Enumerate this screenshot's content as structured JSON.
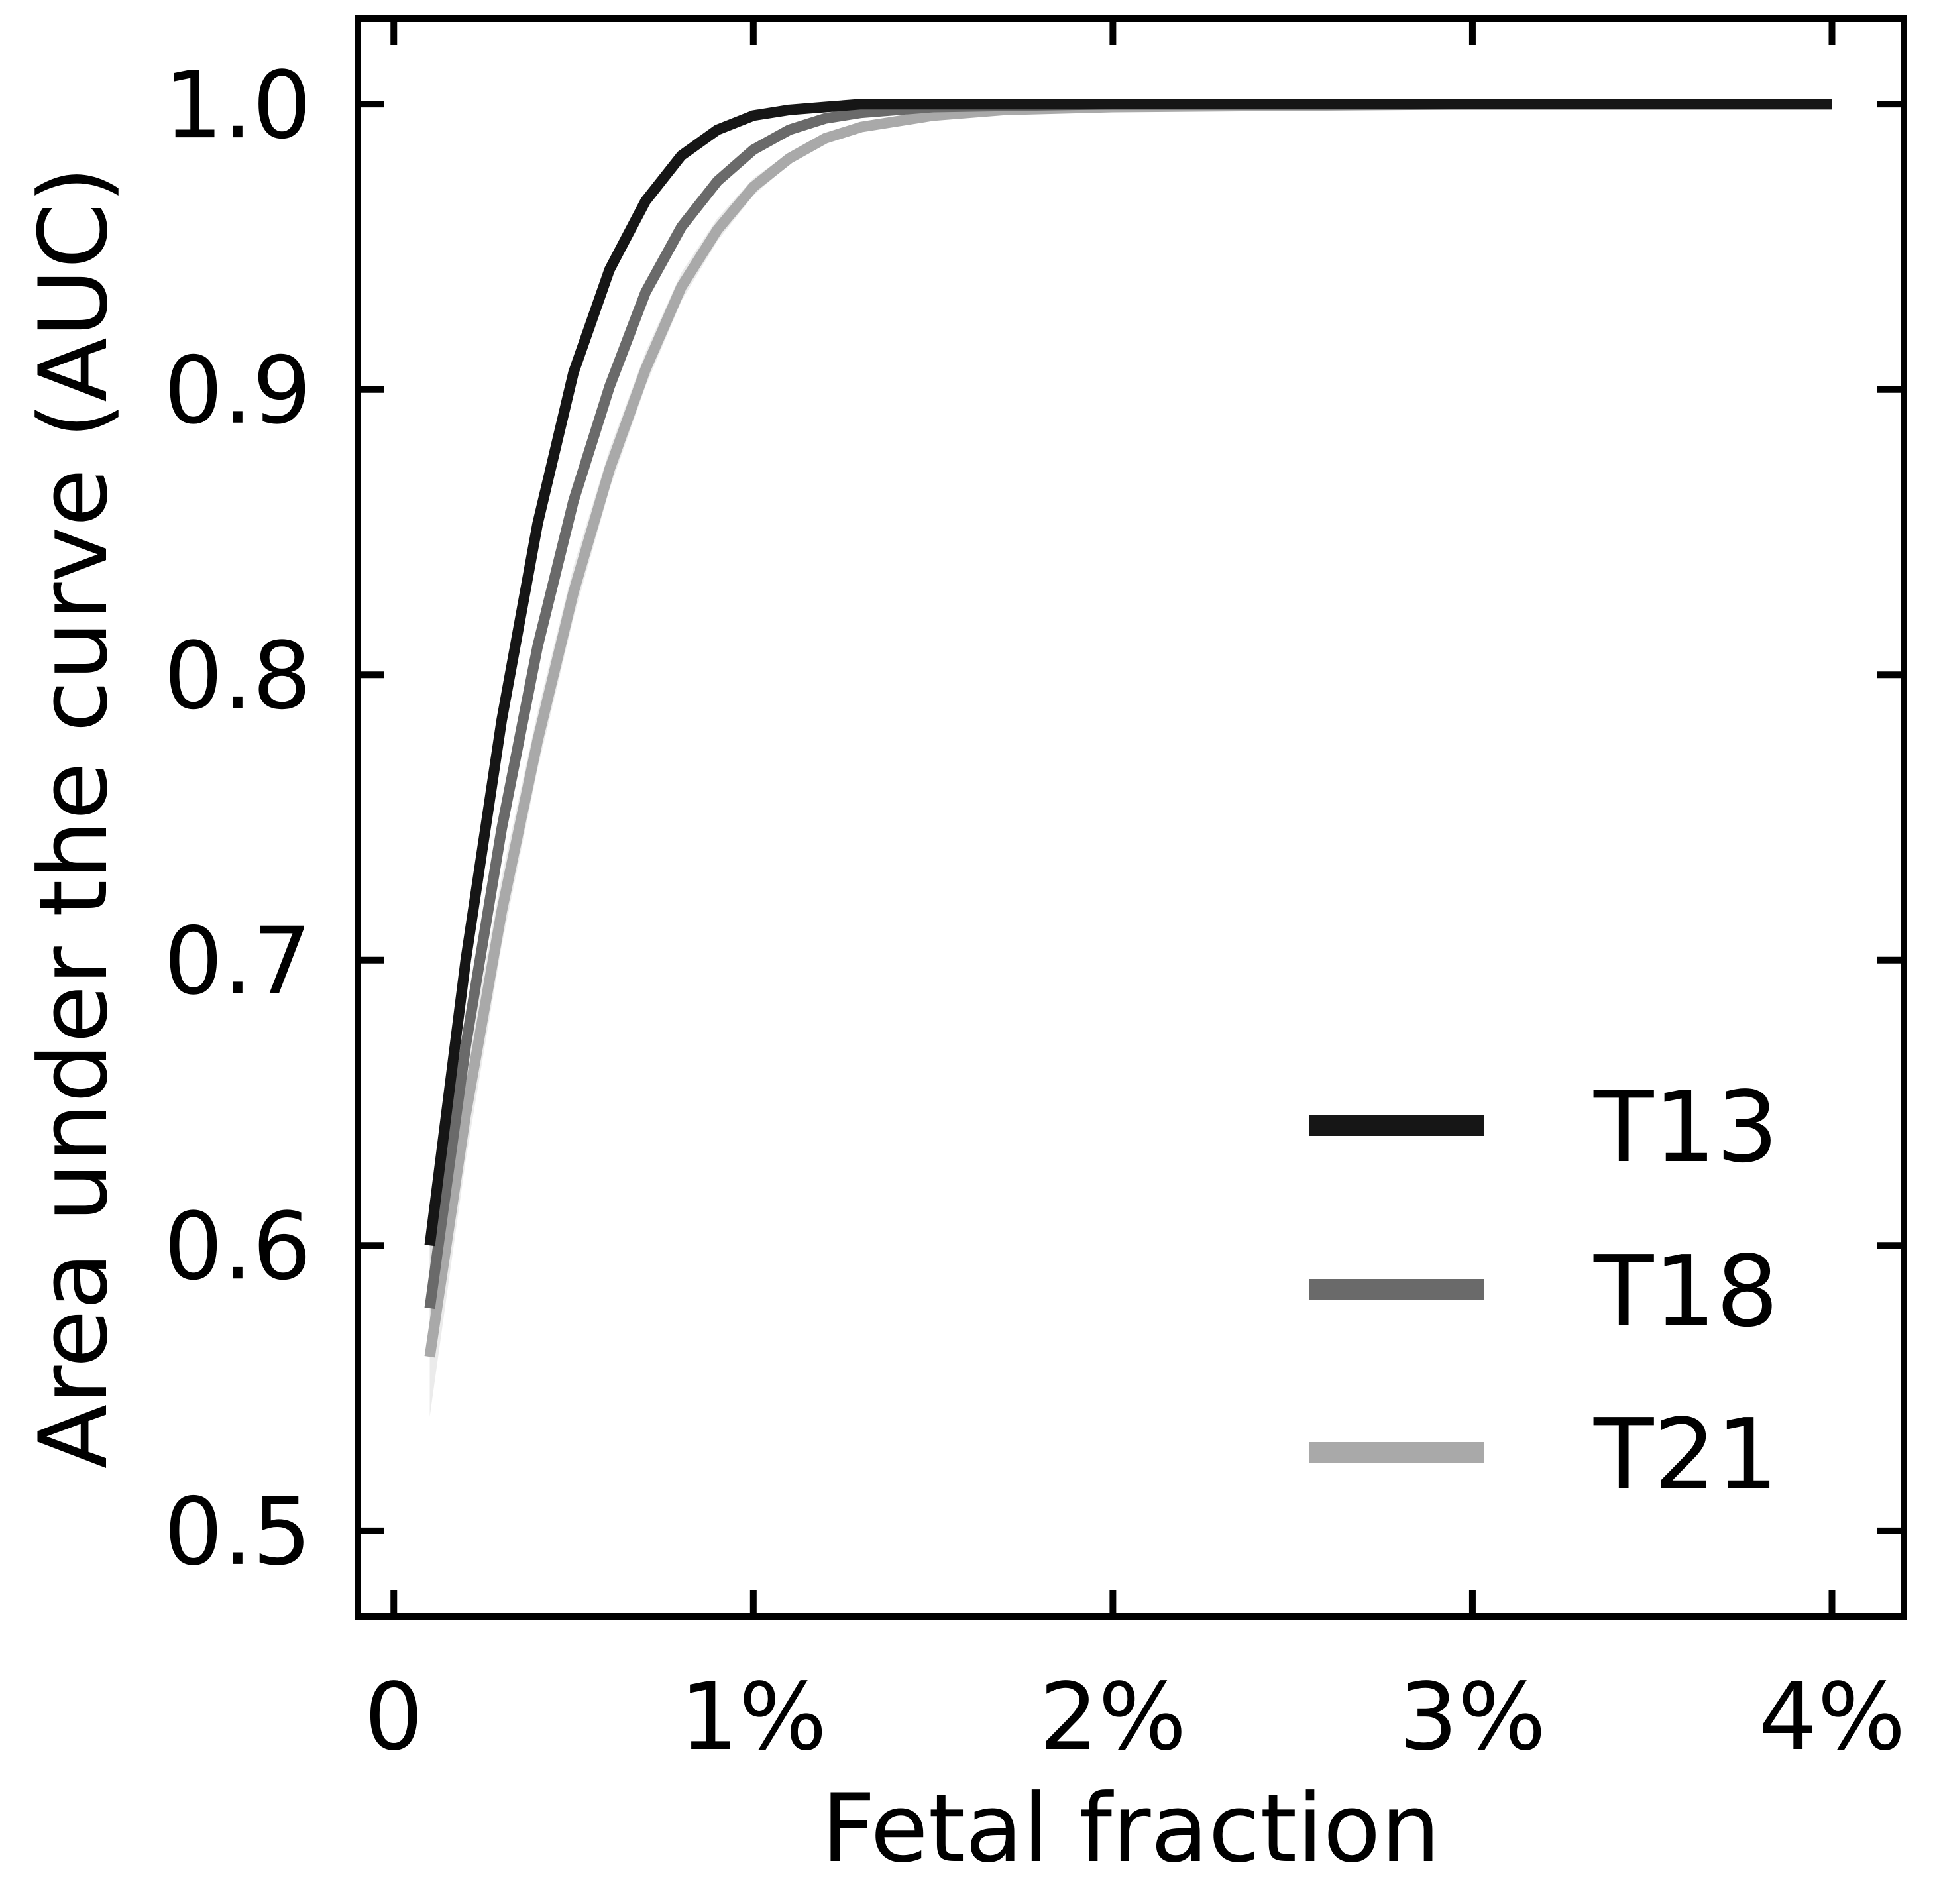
{
  "chart_data": {
    "type": "line",
    "title": "",
    "xlabel": "Fetal fraction",
    "ylabel": "Area under the curve (AUC)",
    "xlim": [
      -0.1,
      4.2
    ],
    "ylim": [
      0.47,
      1.03
    ],
    "x_ticks": [
      {
        "value": 0,
        "label": "0"
      },
      {
        "value": 1,
        "label": "1%"
      },
      {
        "value": 2,
        "label": "2%"
      },
      {
        "value": 3,
        "label": "3%"
      },
      {
        "value": 4,
        "label": "4%"
      }
    ],
    "y_ticks": [
      {
        "value": 0.5,
        "label": "0.5"
      },
      {
        "value": 0.6,
        "label": "0.6"
      },
      {
        "value": 0.7,
        "label": "0.7"
      },
      {
        "value": 0.8,
        "label": "0.8"
      },
      {
        "value": 0.9,
        "label": "0.9"
      },
      {
        "value": 1.0,
        "label": "1.0"
      }
    ],
    "grid": false,
    "legend_position": "bottom-right",
    "series": [
      {
        "name": "T13",
        "color": "#161616",
        "band_color": "#d0d0d0",
        "x": [
          0.1,
          0.2,
          0.3,
          0.4,
          0.5,
          0.6,
          0.7,
          0.8,
          0.9,
          1.0,
          1.1,
          1.2,
          1.3,
          1.5,
          2.0,
          3.0,
          4.0
        ],
        "y": [
          0.6,
          0.7,
          0.784,
          0.853,
          0.906,
          0.942,
          0.966,
          0.982,
          0.991,
          0.996,
          0.998,
          0.999,
          1.0,
          1.0,
          1.0,
          1.0,
          1.0
        ],
        "band_low": [
          0.588,
          0.69,
          0.776,
          0.847,
          0.901,
          0.938,
          0.963,
          0.98,
          0.99,
          0.995,
          0.998,
          0.999,
          1.0,
          1.0,
          1.0,
          1.0,
          1.0
        ],
        "band_high": [
          0.612,
          0.71,
          0.792,
          0.859,
          0.911,
          0.946,
          0.969,
          0.984,
          0.992,
          0.997,
          0.999,
          1.0,
          1.0,
          1.0,
          1.0,
          1.0,
          1.0
        ]
      },
      {
        "name": "T18",
        "color": "#6a6a6a",
        "band_color": "#d6d6d6",
        "x": [
          0.1,
          0.2,
          0.3,
          0.4,
          0.5,
          0.6,
          0.7,
          0.8,
          0.9,
          1.0,
          1.1,
          1.2,
          1.3,
          1.5,
          2.0,
          3.0,
          4.0
        ],
        "y": [
          0.578,
          0.67,
          0.746,
          0.81,
          0.861,
          0.901,
          0.934,
          0.957,
          0.973,
          0.984,
          0.991,
          0.995,
          0.997,
          0.999,
          1.0,
          1.0,
          1.0
        ],
        "band_low": [
          0.566,
          0.66,
          0.738,
          0.803,
          0.855,
          0.896,
          0.93,
          0.954,
          0.971,
          0.983,
          0.99,
          0.994,
          0.997,
          0.999,
          1.0,
          1.0,
          1.0
        ],
        "band_high": [
          0.59,
          0.68,
          0.754,
          0.817,
          0.867,
          0.906,
          0.938,
          0.96,
          0.975,
          0.985,
          0.992,
          0.996,
          0.998,
          1.0,
          1.0,
          1.0,
          1.0
        ]
      },
      {
        "name": "T21",
        "color": "#a9a9a9",
        "band_color": "#e2e2e2",
        "x": [
          0.1,
          0.2,
          0.3,
          0.4,
          0.5,
          0.6,
          0.7,
          0.8,
          0.9,
          1.0,
          1.1,
          1.2,
          1.3,
          1.5,
          1.7,
          2.0,
          3.0,
          4.0
        ],
        "y": [
          0.561,
          0.646,
          0.717,
          0.777,
          0.829,
          0.872,
          0.907,
          0.936,
          0.956,
          0.971,
          0.981,
          0.988,
          0.992,
          0.996,
          0.998,
          0.999,
          1.0,
          1.0
        ],
        "band_low": [
          0.54,
          0.63,
          0.705,
          0.767,
          0.82,
          0.865,
          0.901,
          0.931,
          0.952,
          0.968,
          0.979,
          0.986,
          0.991,
          0.995,
          0.998,
          0.999,
          1.0,
          1.0
        ],
        "band_high": [
          0.582,
          0.662,
          0.729,
          0.787,
          0.838,
          0.879,
          0.913,
          0.941,
          0.96,
          0.974,
          0.983,
          0.99,
          0.993,
          0.997,
          0.999,
          1.0,
          1.0,
          1.0
        ]
      }
    ]
  }
}
